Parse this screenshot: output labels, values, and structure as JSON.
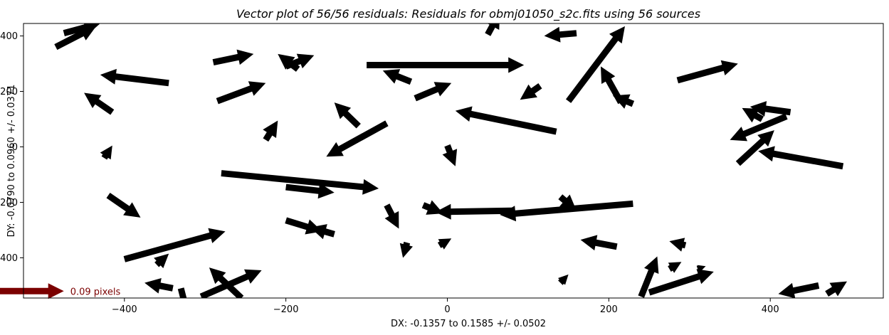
{
  "chart_data": {
    "type": "quiver",
    "title": "Vector plot of 56/56 residuals:  Residuals for obmj01050_s2c.fits using 56 sources",
    "xlabel": "DX: -0.1357 to 0.1585 +/- 0.0502",
    "ylabel": "DY: -0.0790 to 0.0960 +/- 0.0371",
    "xlim": [
      -525,
      540
    ],
    "ylim": [
      -545,
      445
    ],
    "xticks": [
      -400,
      -200,
      0,
      200,
      400
    ],
    "yticks": [
      -400,
      -200,
      0,
      200,
      400
    ],
    "arrow_color": "#000000",
    "key": {
      "label": "0.09 pixels",
      "color": "#7b0000",
      "dx": 100,
      "dy": 0,
      "x": -575,
      "y": -520
    },
    "vectors": [
      {
        "x": -485,
        "y": 360,
        "dx": 50,
        "dy": 75
      },
      {
        "x": -475,
        "y": 410,
        "dx": 45,
        "dy": 35
      },
      {
        "x": -415,
        "y": 125,
        "dx": -35,
        "dy": 70
      },
      {
        "x": -345,
        "y": 230,
        "dx": -85,
        "dy": 30
      },
      {
        "x": -290,
        "y": 305,
        "dx": 50,
        "dy": 30
      },
      {
        "x": -285,
        "y": 165,
        "dx": 60,
        "dy": 65
      },
      {
        "x": -200,
        "y": 290,
        "dx": 35,
        "dy": 40
      },
      {
        "x": -185,
        "y": 280,
        "dx": -25,
        "dy": 55
      },
      {
        "x": -225,
        "y": 25,
        "dx": 15,
        "dy": 70
      },
      {
        "x": -100,
        "y": 295,
        "dx": 195,
        "dy": 0
      },
      {
        "x": -45,
        "y": 235,
        "dx": -35,
        "dy": 40
      },
      {
        "x": -40,
        "y": 175,
        "dx": 45,
        "dy": 55
      },
      {
        "x": -110,
        "y": 75,
        "dx": -30,
        "dy": 85
      },
      {
        "x": -75,
        "y": 85,
        "dx": -75,
        "dy": -120
      },
      {
        "x": 0,
        "y": 5,
        "dx": 10,
        "dy": -75
      },
      {
        "x": 50,
        "y": 405,
        "dx": 15,
        "dy": 80
      },
      {
        "x": 160,
        "y": 410,
        "dx": -40,
        "dy": -10
      },
      {
        "x": 115,
        "y": 220,
        "dx": -25,
        "dy": -50
      },
      {
        "x": 135,
        "y": 55,
        "dx": -125,
        "dy": 75
      },
      {
        "x": 150,
        "y": 165,
        "dx": 70,
        "dy": 270
      },
      {
        "x": 215,
        "y": 160,
        "dx": -25,
        "dy": 130
      },
      {
        "x": 230,
        "y": 155,
        "dx": -25,
        "dy": 30
      },
      {
        "x": 285,
        "y": 240,
        "dx": 75,
        "dy": 60
      },
      {
        "x": 360,
        "y": -60,
        "dx": 45,
        "dy": 120
      },
      {
        "x": 390,
        "y": 100,
        "dx": -25,
        "dy": 40
      },
      {
        "x": 425,
        "y": 125,
        "dx": -50,
        "dy": 20
      },
      {
        "x": 420,
        "y": 110,
        "dx": -70,
        "dy": -85
      },
      {
        "x": 490,
        "y": -70,
        "dx": -105,
        "dy": 55
      },
      {
        "x": -200,
        "y": -265,
        "dx": 45,
        "dy": -40
      },
      {
        "x": -360,
        "y": -425,
        "dx": 15,
        "dy": 40
      },
      {
        "x": -340,
        "y": -510,
        "dx": -35,
        "dy": 20
      },
      {
        "x": -400,
        "y": -405,
        "dx": 125,
        "dy": 100
      },
      {
        "x": -425,
        "y": -40,
        "dx": 10,
        "dy": 45
      },
      {
        "x": -420,
        "y": -175,
        "dx": 40,
        "dy": -80
      },
      {
        "x": -280,
        "y": -95,
        "dx": 195,
        "dy": -55
      },
      {
        "x": -200,
        "y": -145,
        "dx": 60,
        "dy": -20
      },
      {
        "x": -140,
        "y": -315,
        "dx": -30,
        "dy": 25
      },
      {
        "x": -75,
        "y": -210,
        "dx": 15,
        "dy": -85
      },
      {
        "x": 80,
        "y": -230,
        "dx": -95,
        "dy": -5
      },
      {
        "x": -30,
        "y": -210,
        "dx": 25,
        "dy": -30
      },
      {
        "x": -10,
        "y": -355,
        "dx": 15,
        "dy": 25
      },
      {
        "x": -50,
        "y": -345,
        "dx": -5,
        "dy": -55
      },
      {
        "x": -305,
        "y": -540,
        "dx": 75,
        "dy": 95
      },
      {
        "x": -255,
        "y": -545,
        "dx": -40,
        "dy": 110
      },
      {
        "x": -330,
        "y": -510,
        "dx": 10,
        "dy": -115
      },
      {
        "x": 230,
        "y": -205,
        "dx": -165,
        "dy": -40
      },
      {
        "x": 140,
        "y": -180,
        "dx": 20,
        "dy": -50
      },
      {
        "x": 210,
        "y": -360,
        "dx": -45,
        "dy": 25
      },
      {
        "x": 240,
        "y": -540,
        "dx": 20,
        "dy": 145
      },
      {
        "x": 250,
        "y": -525,
        "dx": 80,
        "dy": 75
      },
      {
        "x": 295,
        "y": -355,
        "dx": -20,
        "dy": 15
      },
      {
        "x": 275,
        "y": -440,
        "dx": 15,
        "dy": 25
      },
      {
        "x": 310,
        "y": -440,
        "dx": 10,
        "dy": 10
      },
      {
        "x": 140,
        "y": -490,
        "dx": 10,
        "dy": 30
      },
      {
        "x": 460,
        "y": -500,
        "dx": -50,
        "dy": -30
      },
      {
        "x": 470,
        "y": -530,
        "dx": 25,
        "dy": 45
      }
    ]
  }
}
